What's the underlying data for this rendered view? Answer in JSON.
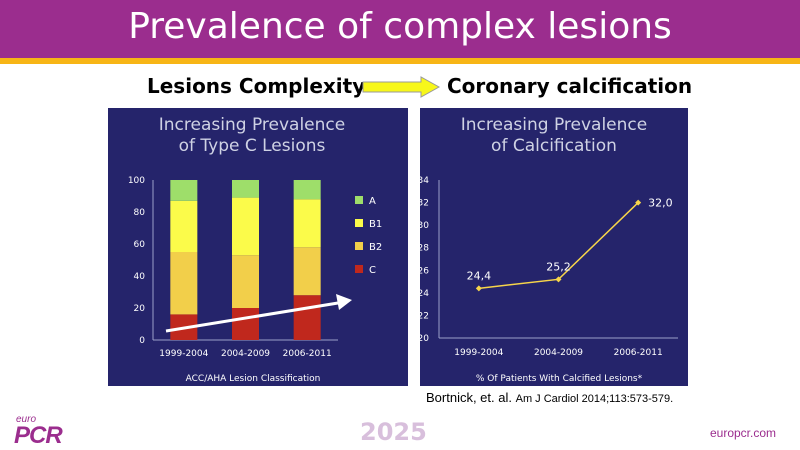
{
  "slide": {
    "title": "Prevalence of complex lesions",
    "left_heading": "Lesions Complexity",
    "right_heading": "Coronary calcification",
    "citation_authors": "Bortnick, et. al.",
    "citation_journal": "Am J Cardiol 2014;113:573-579.",
    "year_badge": "2025",
    "logo_small": "euro",
    "logo_big": "PCR",
    "url": "europcr.com"
  },
  "colors": {
    "brand_purple": "#9b2d8e",
    "accent_yellow": "#f7b516",
    "panel_navy": "#25246b",
    "seg_C": "#c0281d",
    "seg_B2": "#f2cf4a",
    "seg_B1": "#fbfb4a",
    "seg_A": "#9ede6a",
    "line": "#f7d54a"
  },
  "chart_data": [
    {
      "type": "bar",
      "stacked": true,
      "title": [
        "Increasing Prevalence",
        "of Type C Lesions"
      ],
      "xlabel": "ACC/AHA Lesion Classification",
      "ylabel": "",
      "categories": [
        "1999-2004",
        "2004-2009",
        "2006-2011"
      ],
      "series": [
        {
          "name": "C",
          "values": [
            16,
            20,
            28
          ]
        },
        {
          "name": "B2",
          "values": [
            39,
            33,
            30
          ]
        },
        {
          "name": "B1",
          "values": [
            32,
            36,
            30
          ]
        },
        {
          "name": "A",
          "values": [
            13,
            11,
            12
          ]
        }
      ],
      "yticks": [
        "0",
        "20",
        "40",
        "60",
        "80",
        "100"
      ],
      "ylim": [
        0,
        100
      ],
      "legend_position": "right",
      "trend_arrow": true
    },
    {
      "type": "line",
      "title": [
        "Increasing Prevalence",
        "of Calcification"
      ],
      "xlabel": "% Of Patients With Calcified Lesions*",
      "ylabel": "",
      "categories": [
        "1999-2004",
        "2004-2009",
        "2006-2011"
      ],
      "values": [
        24.4,
        25.2,
        32.0
      ],
      "data_labels": [
        "24,4",
        "25,2",
        "32,0"
      ],
      "yticks": [
        "20",
        "22",
        "24",
        "26",
        "28",
        "30",
        "32",
        "34"
      ],
      "ylim": [
        20,
        34
      ]
    }
  ]
}
